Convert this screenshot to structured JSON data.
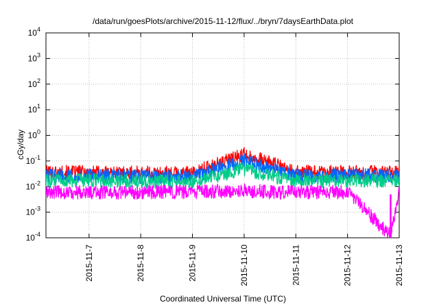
{
  "chart_data": {
    "type": "line",
    "title": "/data/run/goesPlots/archive/2015-11-12/flux/../bryn/7daysEarthData.plot",
    "xlabel": "Coordinated Universal Time (UTC)",
    "ylabel": "cGy/day",
    "x_range": [
      "2015-11-06 04:00",
      "2015-11-13 00:00"
    ],
    "x_ticks": [
      "2015-11-7",
      "2015-11-8",
      "2015-11-9",
      "2015-11-10",
      "2015-11-11",
      "2015-11-12",
      "2015-11-13"
    ],
    "y_scale": "log",
    "ylim": [
      0.0001,
      10000
    ],
    "y_ticks": [
      {
        "base": "10",
        "exp": "-4"
      },
      {
        "base": "10",
        "exp": "-3"
      },
      {
        "base": "10",
        "exp": "-2"
      },
      {
        "base": "10",
        "exp": "-1"
      },
      {
        "base": "10",
        "exp": "0"
      },
      {
        "base": "10",
        "exp": "1"
      },
      {
        "base": "10",
        "exp": "2"
      },
      {
        "base": "10",
        "exp": "3"
      },
      {
        "base": "10",
        "exp": "4"
      }
    ],
    "grid": true,
    "legend": "none",
    "series": [
      {
        "color": "#ff0000",
        "x": [
          "2015-11-06",
          "2015-11-07",
          "2015-11-08",
          "2015-11-09",
          "2015-11-10",
          "2015-11-10 12:00",
          "2015-11-11",
          "2015-11-12",
          "2015-11-13"
        ],
        "values": [
          0.03,
          0.03,
          0.028,
          0.028,
          0.15,
          0.07,
          0.03,
          0.03,
          0.03
        ]
      },
      {
        "color": "#0066ff",
        "x": [
          "2015-11-06",
          "2015-11-07",
          "2015-11-08",
          "2015-11-09",
          "2015-11-10",
          "2015-11-10 12:00",
          "2015-11-11",
          "2015-11-12",
          "2015-11-13"
        ],
        "values": [
          0.022,
          0.022,
          0.02,
          0.02,
          0.09,
          0.045,
          0.022,
          0.022,
          0.022
        ]
      },
      {
        "color": "#00cc88",
        "x": [
          "2015-11-06",
          "2015-11-07",
          "2015-11-08",
          "2015-11-09",
          "2015-11-10",
          "2015-11-10 12:00",
          "2015-11-11",
          "2015-11-12",
          "2015-11-13"
        ],
        "values": [
          0.014,
          0.014,
          0.013,
          0.013,
          0.04,
          0.022,
          0.014,
          0.014,
          0.014
        ]
      },
      {
        "color": "#ff00ff",
        "x": [
          "2015-11-06",
          "2015-11-07",
          "2015-11-08",
          "2015-11-09",
          "2015-11-10",
          "2015-11-10 12:00",
          "2015-11-11",
          "2015-11-12",
          "2015-11-12 20:00",
          "2015-11-13"
        ],
        "values": [
          0.005,
          0.005,
          0.005,
          0.005,
          0.006,
          0.005,
          0.005,
          0.005,
          0.0001,
          0.005
        ]
      }
    ]
  }
}
